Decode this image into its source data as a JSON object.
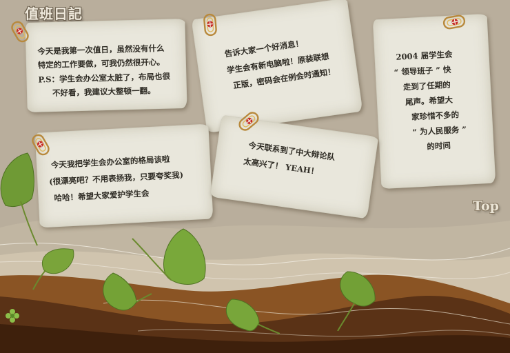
{
  "header": {
    "title": "值班日記"
  },
  "notes": [
    {
      "lines": [
        "今天是我第一次值日，虽然没有什么",
        "特定的工作要做，可我仍然很开心。",
        "P.S：学生会办公室太脏了，布局也很",
        "不好看，我建议大整顿一翻。"
      ]
    },
    {
      "lines": [
        "告诉大家一个好消息！",
        "学生会有新电脑啦！原装联想",
        "正版，密码会在例会时通知！"
      ]
    },
    {
      "lines": [
        "2004 届学生会",
        "“ 领导班子 ” 快",
        "走到了任期的",
        "尾声。希望大",
        "家珍惜不多的",
        "“ 为人民服务 ”",
        "的时间"
      ]
    },
    {
      "lines": [
        "今天我把学生会办公室的格局该啦",
        "(很漂亮吧？不用表扬我，只要夸奖我)",
        "哈哈！希望大家爱护学生会"
      ]
    },
    {
      "lines": [
        "今天联系到了中大辩论队",
        "太高兴了！ YEAH！"
      ]
    }
  ],
  "nav": {
    "top_label": "Top"
  },
  "colors": {
    "background": "#b9ae9c",
    "paper": "#e9e7dc",
    "ground_dark": "#4a2a12",
    "ground_mid": "#7a4a1e",
    "leaf_green": "#6f9a35",
    "clip_red": "#c42828"
  }
}
